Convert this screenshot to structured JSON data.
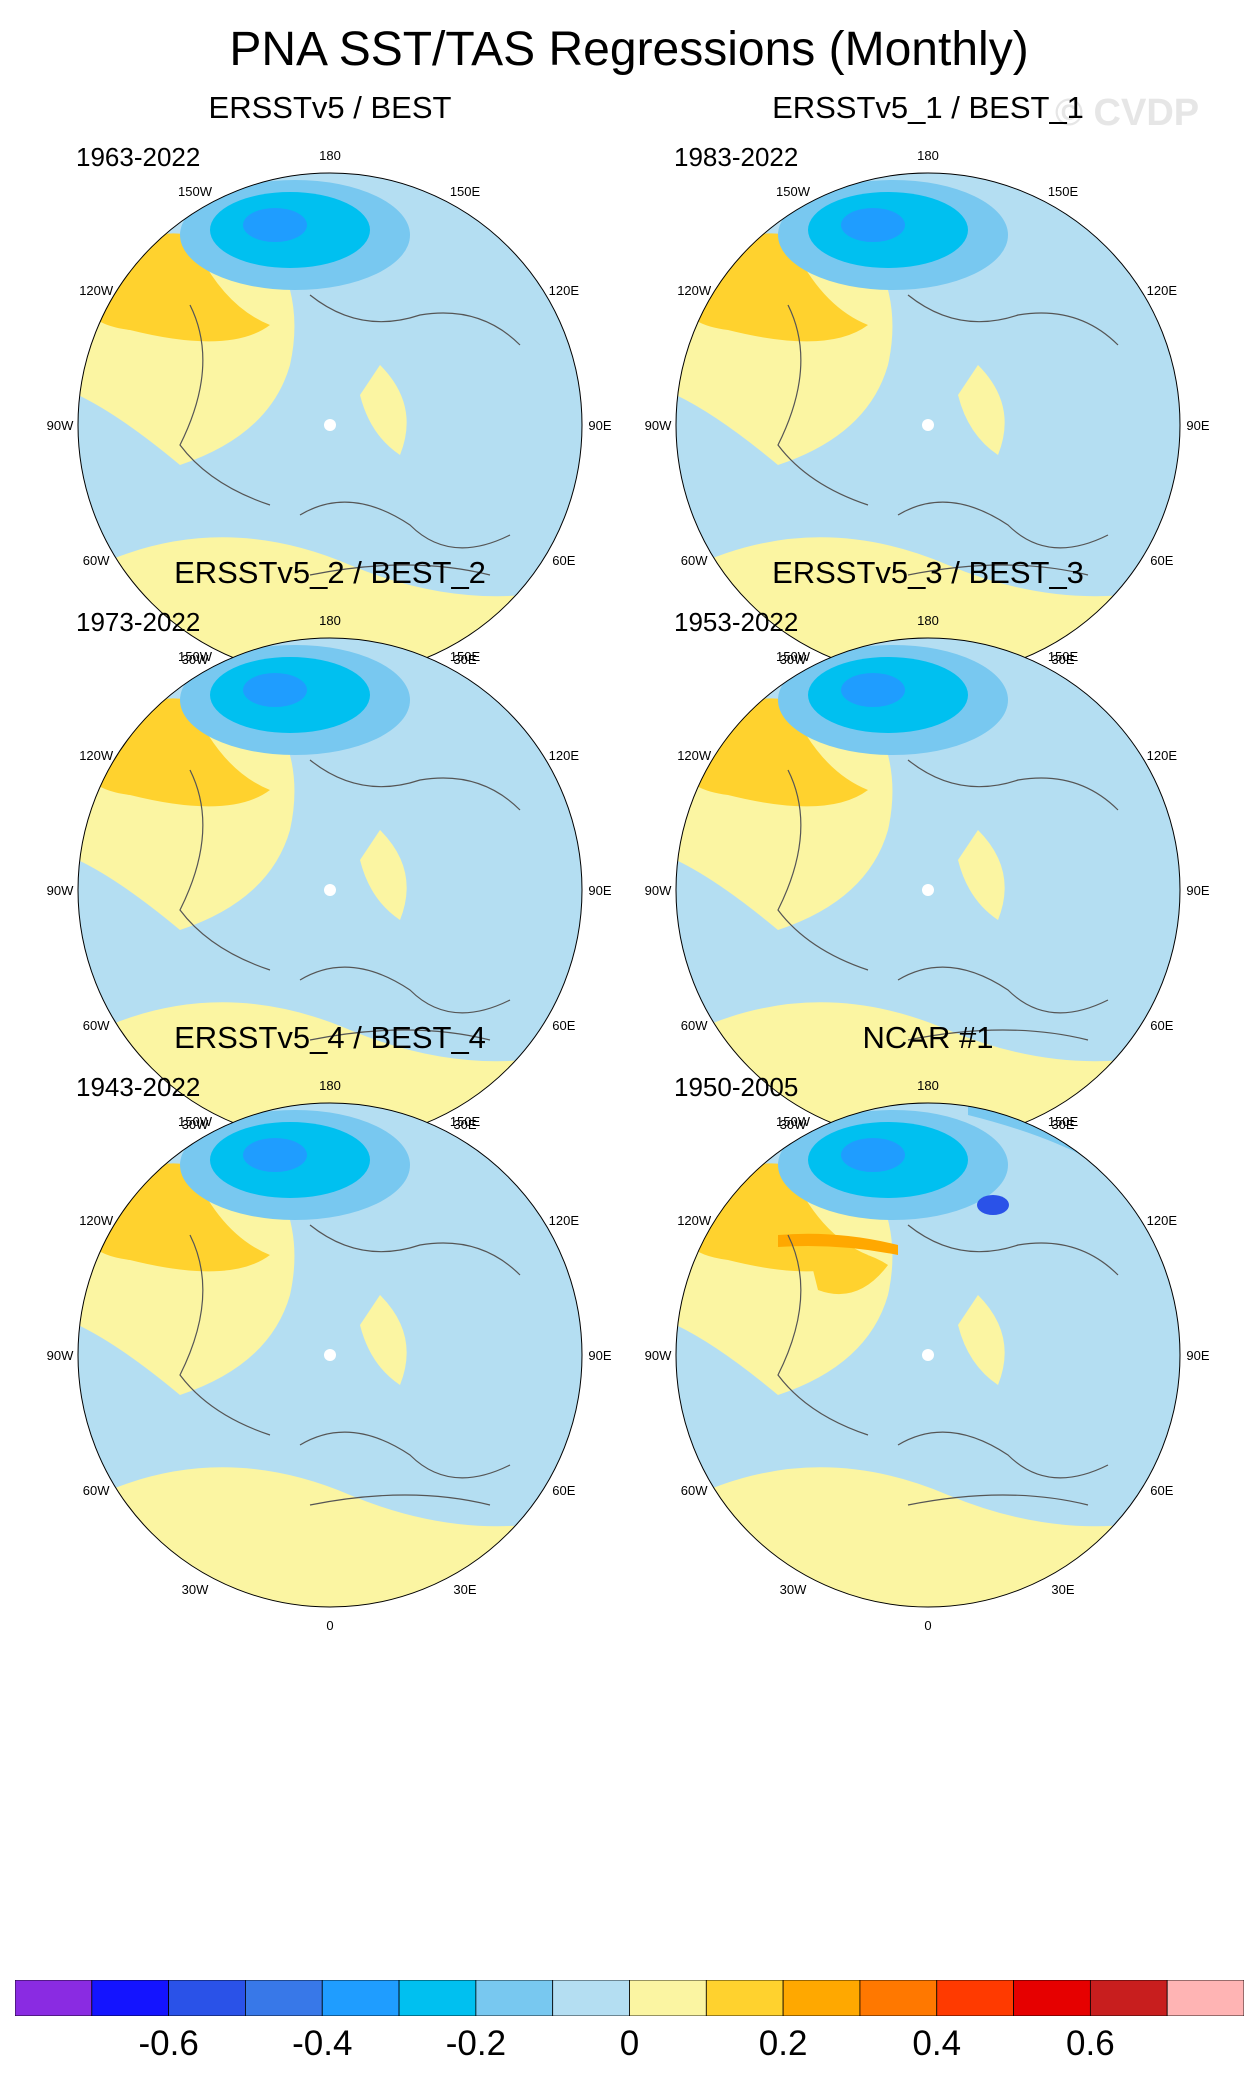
{
  "title": "PNA SST/TAS Regressions (Monthly)",
  "watermark": "© CVDP",
  "longitude_labels": {
    "top": "180",
    "top_left": "150W",
    "top_right": "150E",
    "upper_left": "120W",
    "upper_right": "120E",
    "left": "90W",
    "right": "90E",
    "lower_left": "60W",
    "lower_right": "60E",
    "bottom_left": "30W",
    "bottom_right": "30E",
    "bottom": "0"
  },
  "colors": {
    "land_coast": "#555555",
    "palette": [
      "#8a2be2",
      "#1414ff",
      "#2a52e8",
      "#3878e8",
      "#1f9dff",
      "#00c0f0",
      "#78c8f0",
      "#b4def2",
      "#fbf5a2",
      "#ffd22e",
      "#ffa800",
      "#ff7800",
      "#ff3a00",
      "#e60000",
      "#c81e1e",
      "#ffb4b4"
    ]
  },
  "chart_data": [
    {
      "type": "polar-map",
      "title": "ERSSTv5 / BEST",
      "years": "1963-2022",
      "min_value": -0.4,
      "max_value": 0.2
    },
    {
      "type": "polar-map",
      "title": "ERSSTv5_1 / BEST_1",
      "years": "1983-2022",
      "min_value": -0.4,
      "max_value": 0.2
    },
    {
      "type": "polar-map",
      "title": "ERSSTv5_2 / BEST_2",
      "years": "1973-2022",
      "min_value": -0.4,
      "max_value": 0.2
    },
    {
      "type": "polar-map",
      "title": "ERSSTv5_3 / BEST_3",
      "years": "1953-2022",
      "min_value": -0.4,
      "max_value": 0.2
    },
    {
      "type": "polar-map",
      "title": "ERSSTv5_4 / BEST_4",
      "years": "1943-2022",
      "min_value": -0.4,
      "max_value": 0.2
    },
    {
      "type": "polar-map",
      "title": "NCAR #1",
      "years": "1950-2005",
      "min_value": -0.5,
      "max_value": 0.3
    }
  ],
  "colorbar": {
    "levels": [
      -0.7,
      -0.6,
      -0.5,
      -0.4,
      -0.3,
      -0.2,
      -0.1,
      0,
      0.1,
      0.2,
      0.3,
      0.4,
      0.5,
      0.6,
      0.7
    ],
    "tick_labels": [
      "-0.6",
      "-0.4",
      "-0.2",
      "0",
      "0.2",
      "0.4",
      "0.6"
    ]
  }
}
